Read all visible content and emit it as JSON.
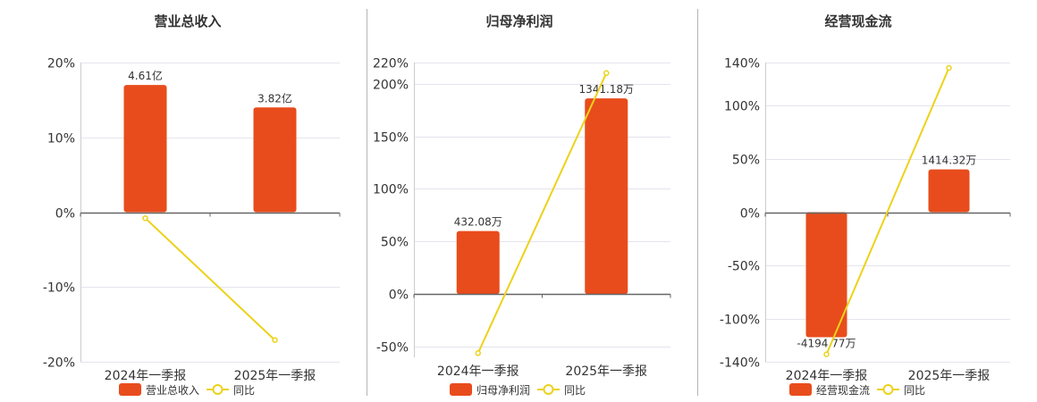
{
  "colors": {
    "bar": "#e84c1c",
    "line": "#ecd21a",
    "axis": "#666666",
    "grid": "#e4e4ee",
    "text": "#333333",
    "divider": "#b4b4b4"
  },
  "chart_data": [
    {
      "type": "bar",
      "title": "营业总收入",
      "categories": [
        "2024年一季报",
        "2025年一季报"
      ],
      "series": [
        {
          "name": "营业总收入",
          "type": "bar",
          "values": [
            17,
            14
          ],
          "labels": [
            "4.61亿",
            "3.82亿"
          ]
        },
        {
          "name": "同比",
          "type": "line",
          "values": [
            -0.8,
            -17.1
          ]
        }
      ],
      "ylim": [
        -20,
        20
      ],
      "yticks": [
        20,
        10,
        0,
        -10,
        -20
      ],
      "ytick_labels": [
        "20%",
        "10%",
        "0%",
        "-10%",
        "-20%"
      ],
      "grid": true,
      "legend": "bottom-center"
    },
    {
      "type": "bar",
      "title": "归母净利润",
      "categories": [
        "2024年一季报",
        "2025年一季报"
      ],
      "series": [
        {
          "name": "归母净利润",
          "type": "bar",
          "values": [
            60,
            186
          ],
          "labels": [
            "432.08万",
            "1341.18万"
          ]
        },
        {
          "name": "同比",
          "type": "line",
          "values": [
            -56,
            210
          ]
        }
      ],
      "ylim": [
        -60,
        220
      ],
      "yticks": [
        220,
        200,
        150,
        100,
        50,
        0,
        -50
      ],
      "ytick_labels": [
        "220%",
        "200%",
        "150%",
        "100%",
        "50%",
        "0%",
        "-50%"
      ],
      "grid": true,
      "legend": "bottom-center"
    },
    {
      "type": "bar",
      "title": "经营现金流",
      "categories": [
        "2024年一季报",
        "2025年一季报"
      ],
      "series": [
        {
          "name": "经营现金流",
          "type": "bar",
          "values": [
            -117,
            40
          ],
          "labels": [
            "-4194.77万",
            "1414.32万"
          ]
        },
        {
          "name": "同比",
          "type": "line",
          "values": [
            -133,
            135
          ]
        }
      ],
      "ylim": [
        -140,
        140
      ],
      "yticks": [
        140,
        100,
        50,
        0,
        -50,
        -100,
        -140
      ],
      "ytick_labels": [
        "140%",
        "100%",
        "50%",
        "0%",
        "-50%",
        "-100%",
        "-140%"
      ],
      "grid": true,
      "legend": "bottom-center"
    }
  ]
}
